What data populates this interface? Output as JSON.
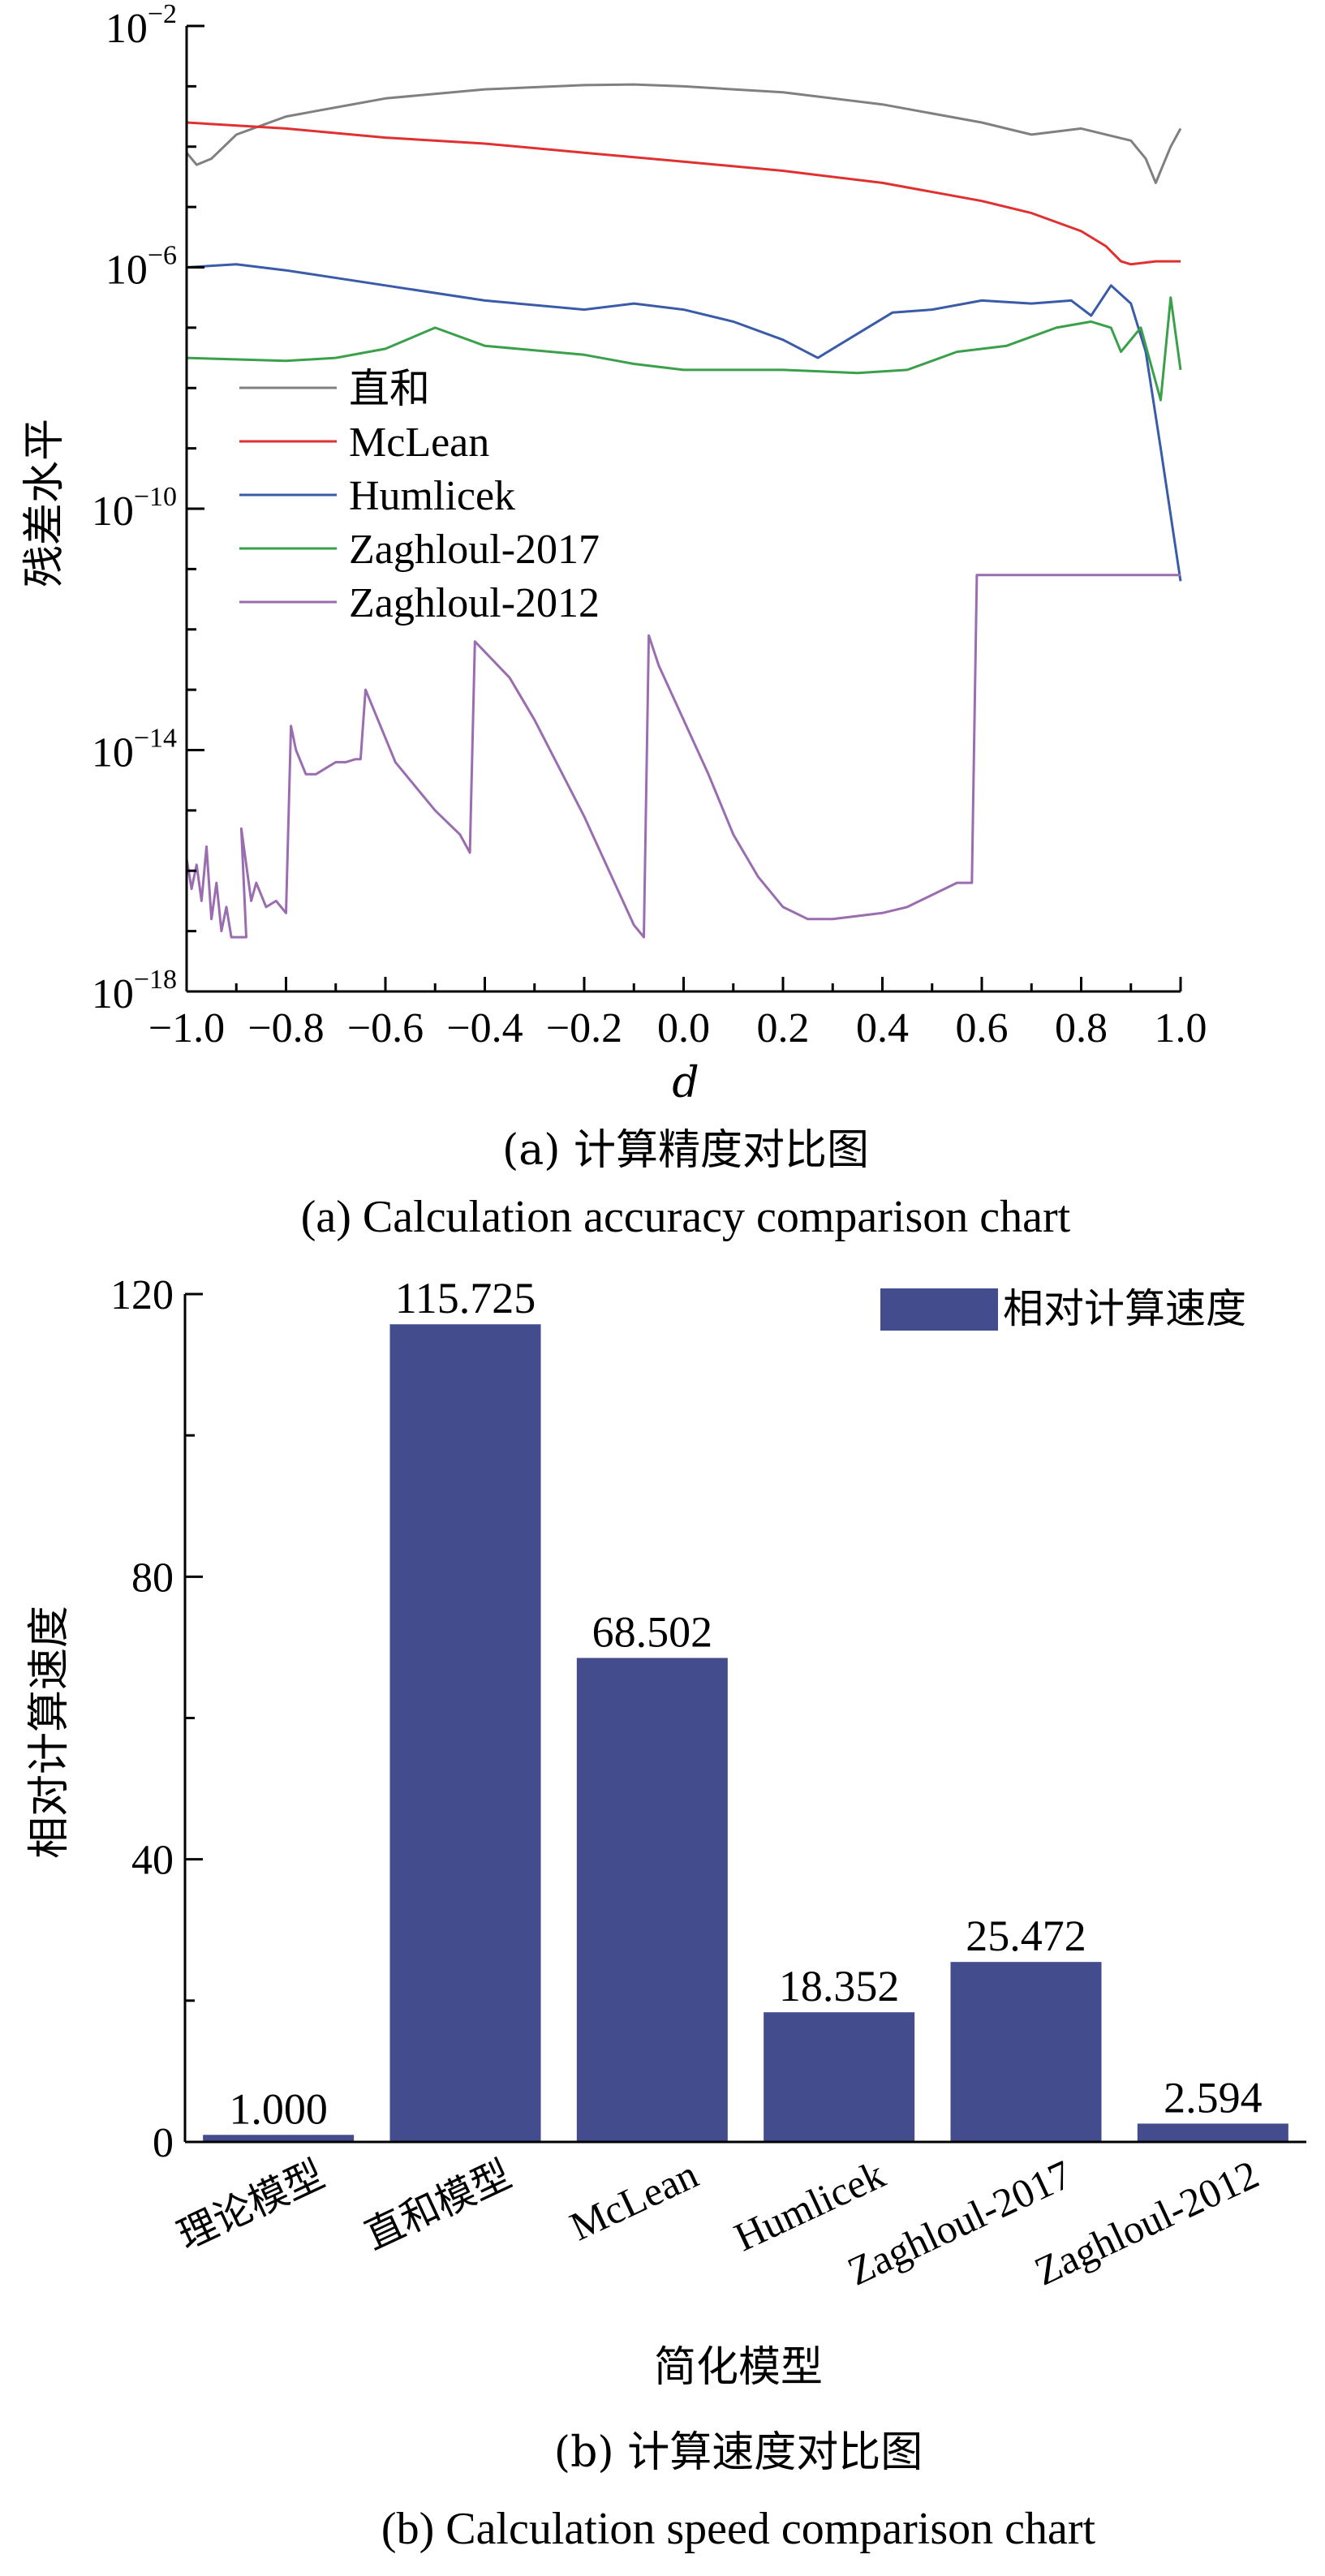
{
  "chart_data": [
    {
      "type": "line",
      "xlabel": "d",
      "ylabel": "残差水平",
      "y_scale": "log",
      "xlim": [
        -1.0,
        1.0
      ],
      "ylim_exponent": [
        -18,
        -2
      ],
      "x_ticks": [
        "−1.0",
        "−0.8",
        "−0.6",
        "−0.4",
        "−0.2",
        "0.0",
        "0.2",
        "0.4",
        "0.6",
        "0.8",
        "1.0"
      ],
      "y_ticks": [
        {
          "base": "10",
          "exp": "−2",
          "value_exp": -2
        },
        {
          "base": "10",
          "exp": "−6",
          "value_exp": -6
        },
        {
          "base": "10",
          "exp": "−10",
          "value_exp": -10
        },
        {
          "base": "10",
          "exp": "−14",
          "value_exp": -14
        },
        {
          "base": "10",
          "exp": "−18",
          "value_exp": -18
        }
      ],
      "legend_position": "left",
      "series": [
        {
          "name": "直和",
          "color": "#808080",
          "x": [
            -1.0,
            -0.98,
            -0.95,
            -0.9,
            -0.8,
            -0.6,
            -0.4,
            -0.2,
            -0.1,
            0.0,
            0.2,
            0.4,
            0.6,
            0.7,
            0.8,
            0.9,
            0.93,
            0.95,
            0.96,
            0.98,
            1.0
          ],
          "log10_y": [
            -4.1,
            -4.3,
            -4.2,
            -3.8,
            -3.5,
            -3.2,
            -3.05,
            -2.98,
            -2.97,
            -3.0,
            -3.1,
            -3.3,
            -3.6,
            -3.8,
            -3.7,
            -3.9,
            -4.2,
            -4.6,
            -4.4,
            -4.0,
            -3.7
          ]
        },
        {
          "name": "McLean",
          "color": "#e03030",
          "x": [
            -1.0,
            -0.8,
            -0.6,
            -0.4,
            -0.2,
            0.0,
            0.2,
            0.4,
            0.6,
            0.7,
            0.8,
            0.85,
            0.88,
            0.9,
            0.95,
            1.0
          ],
          "log10_y": [
            -3.6,
            -3.7,
            -3.85,
            -3.95,
            -4.1,
            -4.25,
            -4.4,
            -4.6,
            -4.9,
            -5.1,
            -5.4,
            -5.65,
            -5.9,
            -5.95,
            -5.9,
            -5.9
          ]
        },
        {
          "name": "Humlicek",
          "color": "#3a5ba8",
          "x": [
            -1.0,
            -0.9,
            -0.8,
            -0.6,
            -0.4,
            -0.2,
            -0.1,
            0.0,
            0.1,
            0.2,
            0.27,
            0.35,
            0.42,
            0.5,
            0.6,
            0.7,
            0.78,
            0.82,
            0.86,
            0.9,
            0.93,
            0.96,
            1.0
          ],
          "log10_y": [
            -6.0,
            -5.95,
            -6.05,
            -6.3,
            -6.55,
            -6.7,
            -6.6,
            -6.7,
            -6.9,
            -7.2,
            -7.5,
            -7.1,
            -6.75,
            -6.7,
            -6.55,
            -6.6,
            -6.55,
            -6.8,
            -6.3,
            -6.6,
            -7.4,
            -9.0,
            -11.2
          ]
        },
        {
          "name": "Zaghloul-2017",
          "color": "#3aa04a",
          "x": [
            -1.0,
            -0.8,
            -0.7,
            -0.6,
            -0.5,
            -0.4,
            -0.2,
            -0.1,
            0.0,
            0.2,
            0.35,
            0.45,
            0.55,
            0.65,
            0.75,
            0.82,
            0.86,
            0.88,
            0.92,
            0.96,
            0.98,
            1.0
          ],
          "log10_y": [
            -7.5,
            -7.55,
            -7.5,
            -7.35,
            -7.0,
            -7.3,
            -7.45,
            -7.6,
            -7.7,
            -7.7,
            -7.75,
            -7.7,
            -7.4,
            -7.3,
            -7.0,
            -6.9,
            -7.0,
            -7.4,
            -7.0,
            -8.2,
            -6.5,
            -7.7
          ]
        },
        {
          "name": "Zaghloul-2012",
          "color": "#9a6db0",
          "x": [
            -1.0,
            -0.99,
            -0.98,
            -0.97,
            -0.96,
            -0.95,
            -0.94,
            -0.93,
            -0.92,
            -0.91,
            -0.9,
            -0.88,
            -0.89,
            -0.87,
            -0.86,
            -0.84,
            -0.82,
            -0.8,
            -0.79,
            -0.78,
            -0.76,
            -0.74,
            -0.72,
            -0.7,
            -0.68,
            -0.66,
            -0.65,
            -0.64,
            -0.62,
            -0.6,
            -0.58,
            -0.55,
            -0.5,
            -0.45,
            -0.43,
            -0.42,
            -0.35,
            -0.3,
            -0.25,
            -0.2,
            -0.15,
            -0.1,
            -0.08,
            -0.07,
            -0.05,
            0.0,
            0.05,
            0.1,
            0.15,
            0.2,
            0.25,
            0.3,
            0.35,
            0.4,
            0.45,
            0.5,
            0.55,
            0.58,
            0.59,
            0.6,
            0.7,
            0.8,
            0.9,
            1.0
          ],
          "log10_y": [
            -15.8,
            -16.3,
            -15.9,
            -16.5,
            -15.6,
            -16.8,
            -16.2,
            -17.0,
            -16.6,
            -17.1,
            -17.1,
            -17.1,
            -15.3,
            -16.5,
            -16.2,
            -16.6,
            -16.5,
            -16.7,
            -13.6,
            -14.0,
            -14.4,
            -14.4,
            -14.3,
            -14.2,
            -14.2,
            -14.15,
            -14.15,
            -13.0,
            -13.4,
            -13.8,
            -14.2,
            -14.5,
            -15.0,
            -15.4,
            -15.7,
            -12.2,
            -12.8,
            -13.5,
            -14.3,
            -15.1,
            -16.0,
            -16.9,
            -17.1,
            -12.1,
            -12.6,
            -13.5,
            -14.4,
            -15.4,
            -16.1,
            -16.6,
            -16.8,
            -16.8,
            -16.75,
            -16.7,
            -16.6,
            -16.4,
            -16.2,
            -16.2,
            -11.1,
            -11.1,
            -11.1,
            -11.1,
            -11.1,
            -11.1
          ]
        }
      ]
    },
    {
      "type": "bar",
      "xlabel": "简化模型",
      "ylabel": "相对计算速度",
      "ylim": [
        0,
        120
      ],
      "y_ticks": [
        "0",
        "40",
        "80",
        "120"
      ],
      "y_tick_values": [
        0,
        40,
        80,
        120
      ],
      "legend_position": "top-right",
      "categories": [
        "理论模型",
        "直和模型",
        "McLean",
        "Humlicek",
        "Zaghloul-2017",
        "Zaghloul-2012"
      ],
      "series": [
        {
          "name": "相对计算速度",
          "color": "#434d8d",
          "values": [
            1.0,
            115.725,
            68.502,
            18.352,
            25.472,
            2.594
          ],
          "labels": [
            "1.000",
            "115.725",
            "68.502",
            "18.352",
            "25.472",
            "2.594"
          ]
        }
      ]
    }
  ],
  "captions": {
    "a_cn": "(a) 计算精度对比图",
    "a_en": "(a) Calculation accuracy comparison chart",
    "b_cn": "(b) 计算速度对比图",
    "b_en": "(b) Calculation speed comparison chart"
  }
}
